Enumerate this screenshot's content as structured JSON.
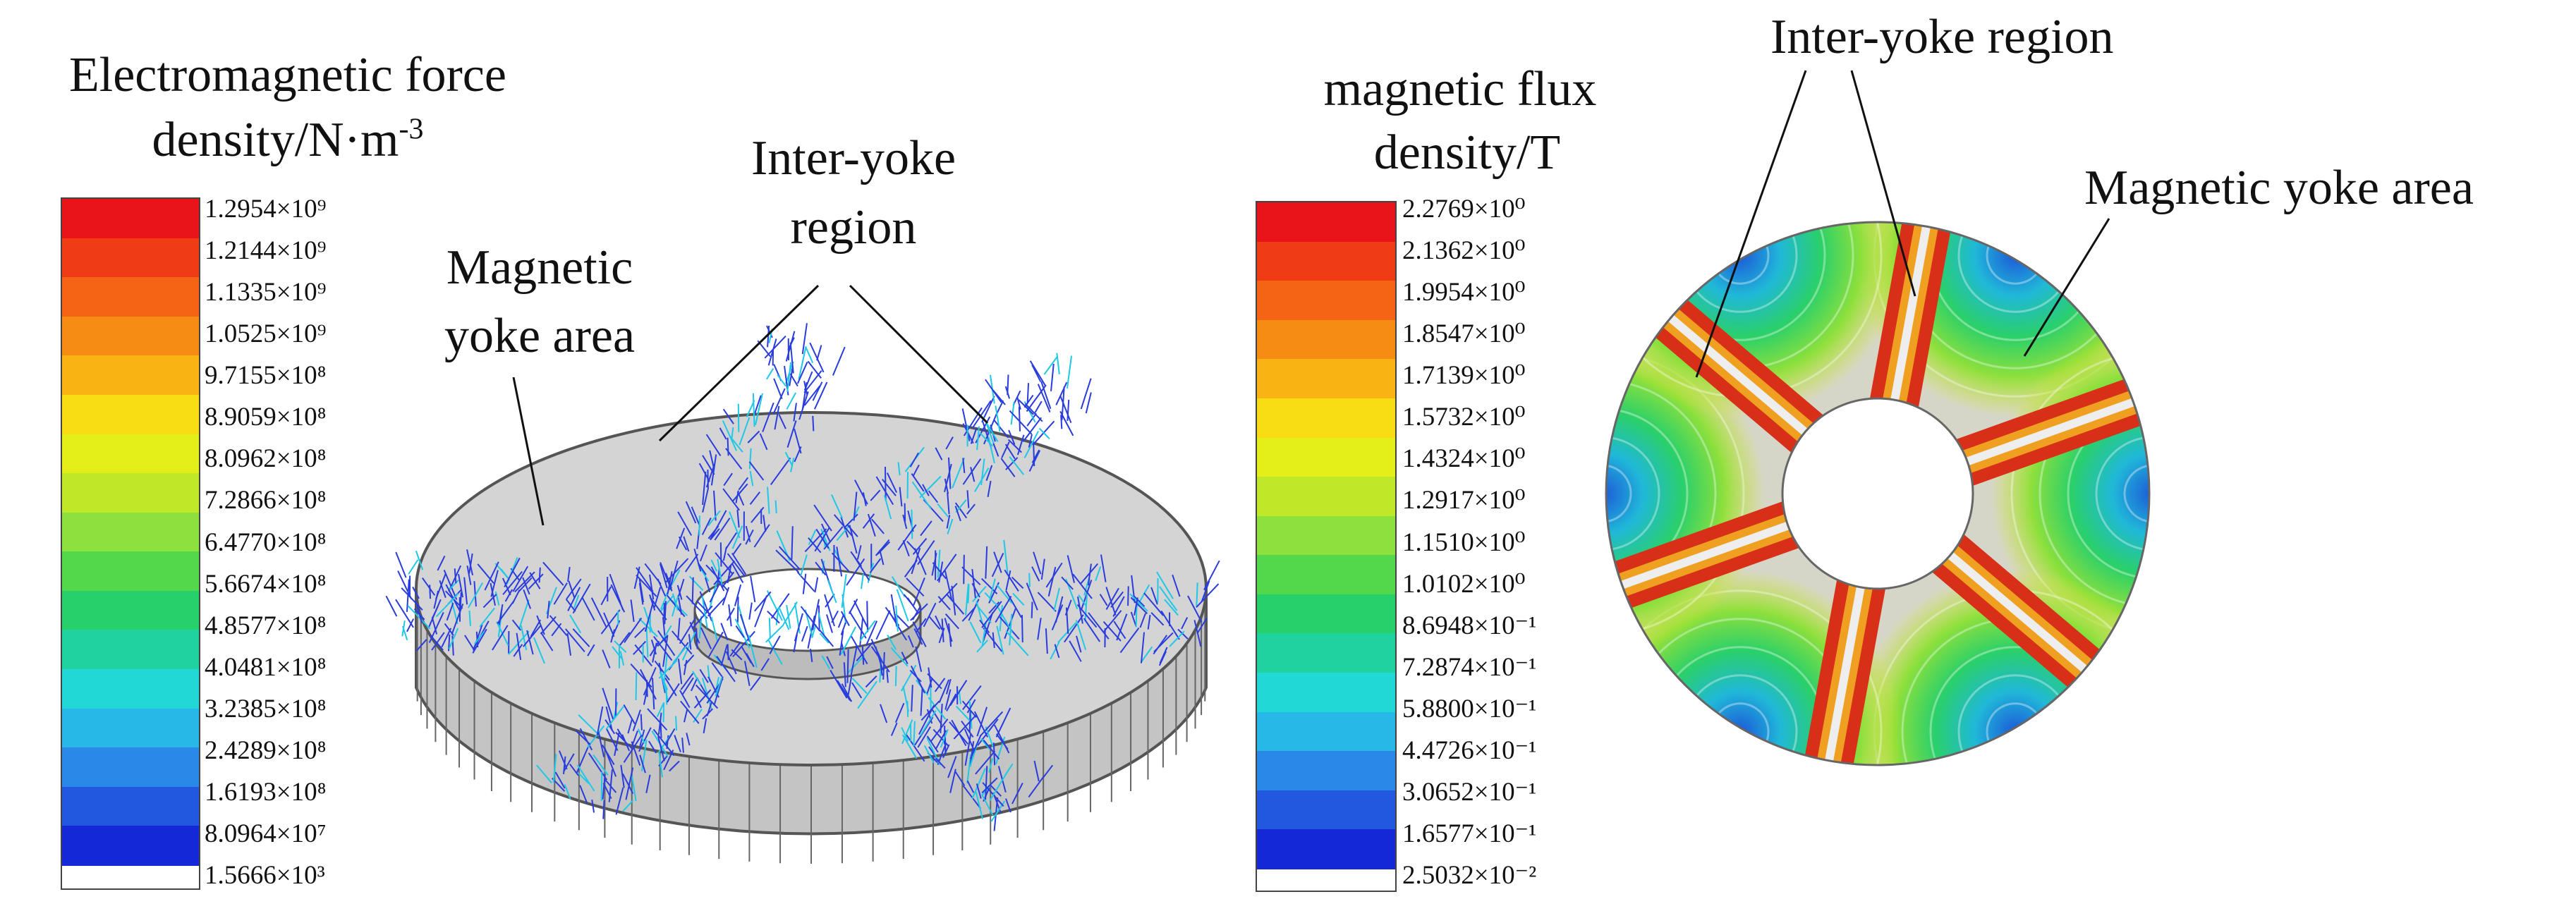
{
  "left_panel": {
    "legend_title_line1": "Electromagnetic force",
    "legend_title_line2": "density/N·m",
    "legend_title_sup": "-3",
    "ticks": [
      "1.2954×10⁹",
      "1.2144×10⁹",
      "1.1335×10⁹",
      "1.0525×10⁹",
      "9.7155×10⁸",
      "8.9059×10⁸",
      "8.0962×10⁸",
      "7.2866×10⁸",
      "6.4770×10⁸",
      "5.6674×10⁸",
      "4.8577×10⁸",
      "4.0481×10⁸",
      "3.2385×10⁸",
      "2.4289×10⁸",
      "1.6193×10⁸",
      "8.0964×10⁷",
      "1.5666×10³"
    ],
    "label_yoke_line1": "Magnetic",
    "label_yoke_line2": "yoke area",
    "label_inter_line1": "Inter-yoke",
    "label_inter_line2": "region"
  },
  "right_panel": {
    "legend_title_line1": "magnetic flux",
    "legend_title_line2": "density/T",
    "ticks": [
      "2.2769×10⁰",
      "2.1362×10⁰",
      "1.9954×10⁰",
      "1.8547×10⁰",
      "1.7139×10⁰",
      "1.5732×10⁰",
      "1.4324×10⁰",
      "1.2917×10⁰",
      "1.1510×10⁰",
      "1.0102×10⁰",
      "8.6948×10⁻¹",
      "7.2874×10⁻¹",
      "5.8800×10⁻¹",
      "4.4726×10⁻¹",
      "3.0652×10⁻¹",
      "1.6577×10⁻¹",
      "2.5032×10⁻²"
    ],
    "label_inter": "Inter-yoke region",
    "label_yoke": "Magnetic yoke area"
  },
  "colorbar": [
    "#e8141a",
    "#f03c14",
    "#f56414",
    "#f78c14",
    "#f9b414",
    "#f8dc14",
    "#e4ee18",
    "#bfe828",
    "#8ee03c",
    "#52d84a",
    "#28d06a",
    "#20d2a0",
    "#22d8d6",
    "#28b8e8",
    "#2a88e8",
    "#2258e0",
    "#1428d8"
  ],
  "colors": {
    "disk_fill": "#d4d4d4",
    "disk_edge": "#555555",
    "arrow_blue": "#2a3cdc",
    "arrow_cyan": "#1ec8e6"
  }
}
